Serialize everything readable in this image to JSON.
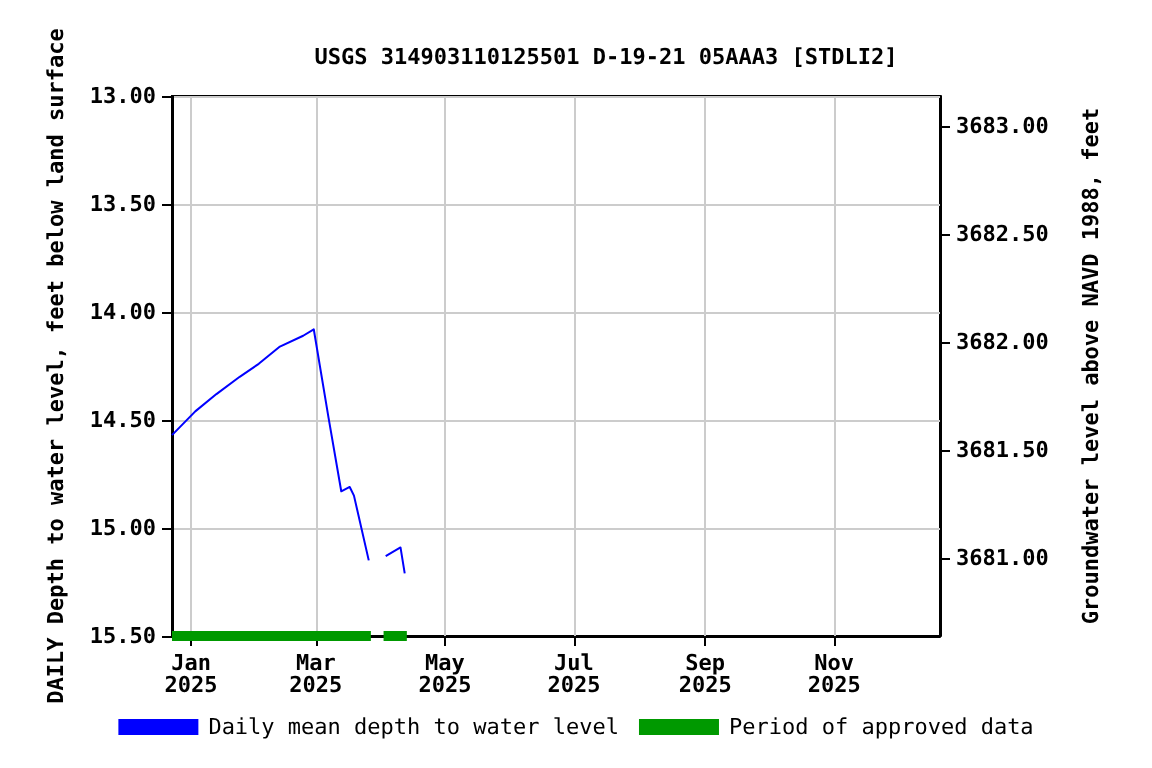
{
  "chart_data": {
    "type": "line",
    "title": "USGS 314903110125501 D-19-21 05AAA3 [STDLI2]",
    "ylabel": "DAILY Depth to water level, feet below land surface",
    "y2label": "Groundwater level above NAVD 1988, feet",
    "xlim": [
      "2024-12-23",
      "2025-12-21"
    ],
    "xticks": [
      {
        "value": "2025-01-01",
        "label": "Jan\n2025"
      },
      {
        "value": "2025-03-01",
        "label": "Mar\n2025"
      },
      {
        "value": "2025-05-01",
        "label": "May\n2025"
      },
      {
        "value": "2025-07-01",
        "label": "Jul\n2025"
      },
      {
        "value": "2025-09-01",
        "label": "Sep\n2025"
      },
      {
        "value": "2025-11-01",
        "label": "Nov\n2025"
      }
    ],
    "ylim": [
      15.5,
      13
    ],
    "yticks": [
      {
        "value": 13,
        "label": "13.00"
      },
      {
        "value": 13.5,
        "label": "13.50"
      },
      {
        "value": 14,
        "label": "14.00"
      },
      {
        "value": 14.5,
        "label": "14.50"
      },
      {
        "value": 15,
        "label": "15.00"
      },
      {
        "value": 15.5,
        "label": "15.50"
      }
    ],
    "y2lim": [
      3680.64,
      3683.14
    ],
    "y2ticks": [
      {
        "value": 3681,
        "label": "3681.00"
      },
      {
        "value": 3681.5,
        "label": "3681.50"
      },
      {
        "value": 3682,
        "label": "3682.00"
      },
      {
        "value": 3682.5,
        "label": "3682.50"
      },
      {
        "value": 3683,
        "label": "3683.00"
      }
    ],
    "grid": true,
    "legend": "bottom",
    "marker": "none",
    "series": [
      {
        "name": "Daily mean depth to water level",
        "color": "#0000ff",
        "x": [
          "2024-12-23",
          "2025-01-03",
          "2025-01-13",
          "2025-01-24",
          "2025-02-02",
          "2025-02-12",
          "2025-02-23",
          "2025-02-28",
          "2025-03-07",
          "2025-03-13",
          "2025-03-15",
          "2025-03-17",
          "2025-03-19",
          "2025-03-26",
          "2025-03-30",
          "2025-04-03",
          "2025-04-10",
          "2025-04-12"
        ],
        "values": [
          14.57,
          14.46,
          14.38,
          14.3,
          14.24,
          14.16,
          14.11,
          14.08,
          14.49,
          14.83,
          14.82,
          14.81,
          14.85,
          15.15,
          null,
          15.13,
          15.09,
          15.21
        ]
      },
      {
        "name": "Period of approved data",
        "color": "#009900",
        "line_style": "solid",
        "x": [
          "2024-12-23",
          "2025-03-27",
          "2025-03-30",
          "2025-04-02",
          "2025-04-13"
        ],
        "values": [
          15.5,
          15.5,
          null,
          15.5,
          15.5
        ]
      }
    ]
  }
}
